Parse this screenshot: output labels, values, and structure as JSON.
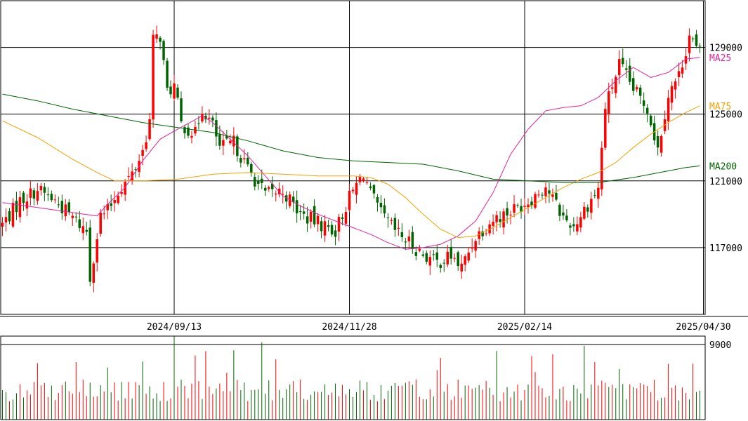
{
  "chart_data": {
    "type": "candlestick",
    "x_tick_labels": [
      "2024/09/13",
      "2024/11/28",
      "2025/02/14",
      "2025/04/30"
    ],
    "x_tick_indices": [
      49,
      99,
      149,
      200
    ],
    "n_sessions": 201,
    "y_tick_labels": [
      "117000",
      "121000",
      "125000",
      "129000"
    ],
    "y_ticks": [
      117000,
      121000,
      125000,
      129000
    ],
    "ylim": [
      113000,
      131800
    ],
    "volume_tick_labels": [
      "9000"
    ],
    "volume_ticks": [
      9000
    ],
    "volume_ylim": [
      0,
      10000
    ],
    "grid": true,
    "colors": {
      "up": "#ff0000",
      "down": "#006400",
      "ma25": "#e0239f",
      "ma75": "#f2a200",
      "ma200": "#006400",
      "grid": "#000000"
    },
    "moving_averages": [
      {
        "name": "MA25",
        "label_value": 128400,
        "points": [
          [
            0,
            119700
          ],
          [
            10,
            119400
          ],
          [
            20,
            119100
          ],
          [
            27,
            118900
          ],
          [
            30,
            119600
          ],
          [
            35,
            120600
          ],
          [
            40,
            122200
          ],
          [
            45,
            123500
          ],
          [
            50,
            124100
          ],
          [
            57,
            124900
          ],
          [
            60,
            124500
          ],
          [
            65,
            123500
          ],
          [
            70,
            122500
          ],
          [
            75,
            121300
          ],
          [
            80,
            120100
          ],
          [
            85,
            119500
          ],
          [
            90,
            119000
          ],
          [
            95,
            118600
          ],
          [
            100,
            118200
          ],
          [
            105,
            117800
          ],
          [
            110,
            117300
          ],
          [
            115,
            116900
          ],
          [
            120,
            117000
          ],
          [
            125,
            117200
          ],
          [
            130,
            117700
          ],
          [
            135,
            118600
          ],
          [
            140,
            120300
          ],
          [
            145,
            122600
          ],
          [
            150,
            124100
          ],
          [
            155,
            125200
          ],
          [
            160,
            125400
          ],
          [
            165,
            125500
          ],
          [
            170,
            126000
          ],
          [
            175,
            127000
          ],
          [
            180,
            127800
          ],
          [
            185,
            127200
          ],
          [
            190,
            127500
          ],
          [
            195,
            128300
          ],
          [
            199,
            128400
          ]
        ]
      },
      {
        "name": "MA75",
        "label_value": 125500,
        "points": [
          [
            0,
            124600
          ],
          [
            10,
            123600
          ],
          [
            20,
            122300
          ],
          [
            27,
            121500
          ],
          [
            32,
            121000
          ],
          [
            40,
            121000
          ],
          [
            50,
            121100
          ],
          [
            60,
            121400
          ],
          [
            70,
            121500
          ],
          [
            80,
            121400
          ],
          [
            90,
            121300
          ],
          [
            100,
            121300
          ],
          [
            105,
            121200
          ],
          [
            110,
            120800
          ],
          [
            115,
            120000
          ],
          [
            120,
            119000
          ],
          [
            125,
            118100
          ],
          [
            130,
            117600
          ],
          [
            135,
            117700
          ],
          [
            140,
            118200
          ],
          [
            145,
            118800
          ],
          [
            150,
            119400
          ],
          [
            155,
            120000
          ],
          [
            160,
            120600
          ],
          [
            165,
            121100
          ],
          [
            170,
            121500
          ],
          [
            175,
            122100
          ],
          [
            180,
            123000
          ],
          [
            185,
            123800
          ],
          [
            190,
            124500
          ],
          [
            195,
            125100
          ],
          [
            199,
            125500
          ]
        ]
      },
      {
        "name": "MA200",
        "label_value": 121900,
        "points": [
          [
            0,
            126200
          ],
          [
            10,
            125800
          ],
          [
            20,
            125300
          ],
          [
            30,
            124900
          ],
          [
            40,
            124500
          ],
          [
            50,
            124200
          ],
          [
            60,
            123900
          ],
          [
            70,
            123400
          ],
          [
            80,
            122800
          ],
          [
            90,
            122400
          ],
          [
            100,
            122200
          ],
          [
            110,
            122100
          ],
          [
            120,
            122000
          ],
          [
            130,
            121600
          ],
          [
            140,
            121100
          ],
          [
            150,
            121000
          ],
          [
            160,
            120900
          ],
          [
            170,
            120900
          ],
          [
            180,
            121200
          ],
          [
            185,
            121400
          ],
          [
            190,
            121600
          ],
          [
            195,
            121800
          ],
          [
            199,
            121900
          ]
        ]
      }
    ]
  }
}
